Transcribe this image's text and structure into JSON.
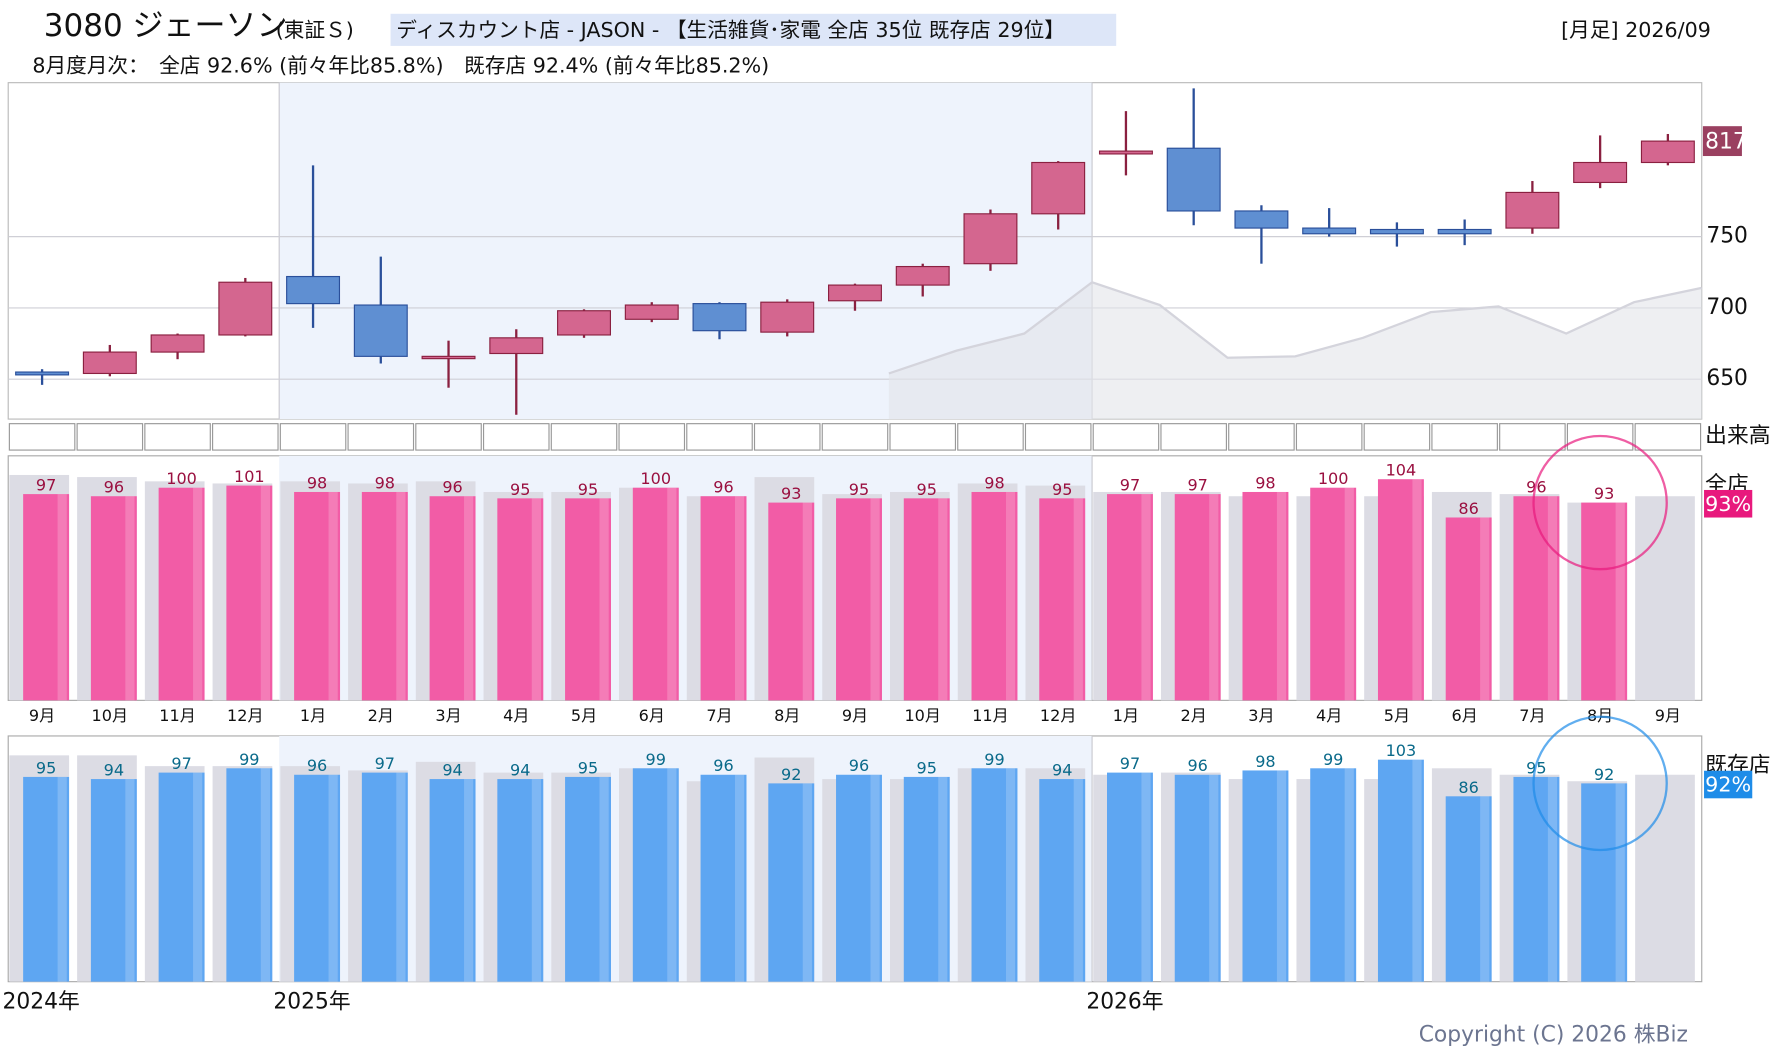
{
  "header": {
    "code_name": "3080 ジェーソン",
    "market": "(東証Ｓ)",
    "category": "ディスカウント店 - JASON - 【生活雑貨･家電 全店 35位 既存店 29位】",
    "period": "[月足] 2026/09",
    "monthly": "8月度月次：　全店 92.6% (前々年比85.8%)　既存店 92.4% (前々年比85.2%)",
    "copyright": "Copyright (C) 2026 株Biz"
  },
  "chart_data": [
    {
      "type": "candlestick",
      "categories": [
        "9月",
        "10月",
        "11月",
        "12月",
        "1月",
        "2月",
        "3月",
        "4月",
        "5月",
        "6月",
        "7月",
        "8月",
        "9月",
        "10月",
        "11月",
        "12月",
        "1月",
        "2月",
        "3月",
        "4月",
        "5月",
        "6月",
        "7月",
        "8月",
        "9月"
      ],
      "years": [
        {
          "label": "2024年",
          "start": 0
        },
        {
          "label": "2025年",
          "start": 4
        },
        {
          "label": "2026年",
          "start": 16
        }
      ],
      "open": [
        655,
        654,
        669,
        681,
        722,
        702,
        666,
        668,
        681,
        692,
        703,
        683,
        705,
        716,
        731,
        766,
        808,
        812,
        768,
        756,
        755,
        755,
        756,
        788,
        802
      ],
      "high": [
        657,
        674,
        682,
        721,
        800,
        736,
        677,
        685,
        699,
        704,
        704,
        706,
        717,
        731,
        769,
        803,
        838,
        854,
        772,
        770,
        760,
        762,
        789,
        821,
        822
      ],
      "low": [
        646,
        652,
        664,
        680,
        686,
        661,
        644,
        625,
        679,
        690,
        678,
        680,
        698,
        708,
        726,
        755,
        793,
        758,
        731,
        750,
        743,
        744,
        752,
        784,
        800
      ],
      "close": [
        653,
        669,
        681,
        718,
        703,
        666,
        666,
        679,
        698,
        702,
        684,
        704,
        716,
        729,
        766,
        802,
        810,
        768,
        756,
        752,
        752,
        752,
        781,
        802,
        817
      ],
      "area_values": [
        null,
        null,
        null,
        null,
        null,
        null,
        null,
        null,
        null,
        null,
        null,
        null,
        654,
        670,
        682,
        718,
        702,
        665,
        666,
        679,
        697,
        701,
        682,
        704,
        714
      ],
      "up_color": "#d4668f",
      "down_color": "#5f8fd2",
      "ylim": [
        622,
        858
      ],
      "yticks": [
        650,
        700,
        750
      ],
      "grid": true,
      "volume_label": "出来高"
    },
    {
      "type": "bar",
      "label": "全店",
      "latest_label": "93%",
      "values": [
        97,
        96,
        100,
        101,
        98,
        98,
        96,
        95,
        95,
        100,
        96,
        93,
        95,
        95,
        98,
        95,
        97,
        97,
        98,
        100,
        104,
        86,
        96,
        93,
        null
      ],
      "background_values": [
        106,
        105,
        103,
        102,
        103,
        102,
        103,
        98,
        98,
        100,
        96,
        105,
        97,
        98,
        102,
        101,
        98,
        98,
        96,
        96,
        96,
        98,
        97,
        93,
        96
      ],
      "color": "#f25ca6",
      "label_color": "#9a1040",
      "badge_color": "#e8197d",
      "ylim": [
        0,
        115
      ]
    },
    {
      "type": "bar",
      "label": "既存店",
      "latest_label": "92%",
      "values": [
        95,
        94,
        97,
        99,
        96,
        97,
        94,
        94,
        95,
        99,
        96,
        92,
        96,
        95,
        99,
        94,
        97,
        96,
        98,
        99,
        103,
        86,
        95,
        92,
        null
      ],
      "background_values": [
        105,
        105,
        100,
        100,
        100,
        98,
        102,
        97,
        97,
        99,
        93,
        104,
        94,
        94,
        99,
        99,
        96,
        97,
        94,
        94,
        94,
        99,
        96,
        93,
        96
      ],
      "color": "#5ea6f2",
      "label_color": "#0a6a8a",
      "badge_color": "#1e8ce8",
      "ylim": [
        0,
        114
      ]
    }
  ]
}
